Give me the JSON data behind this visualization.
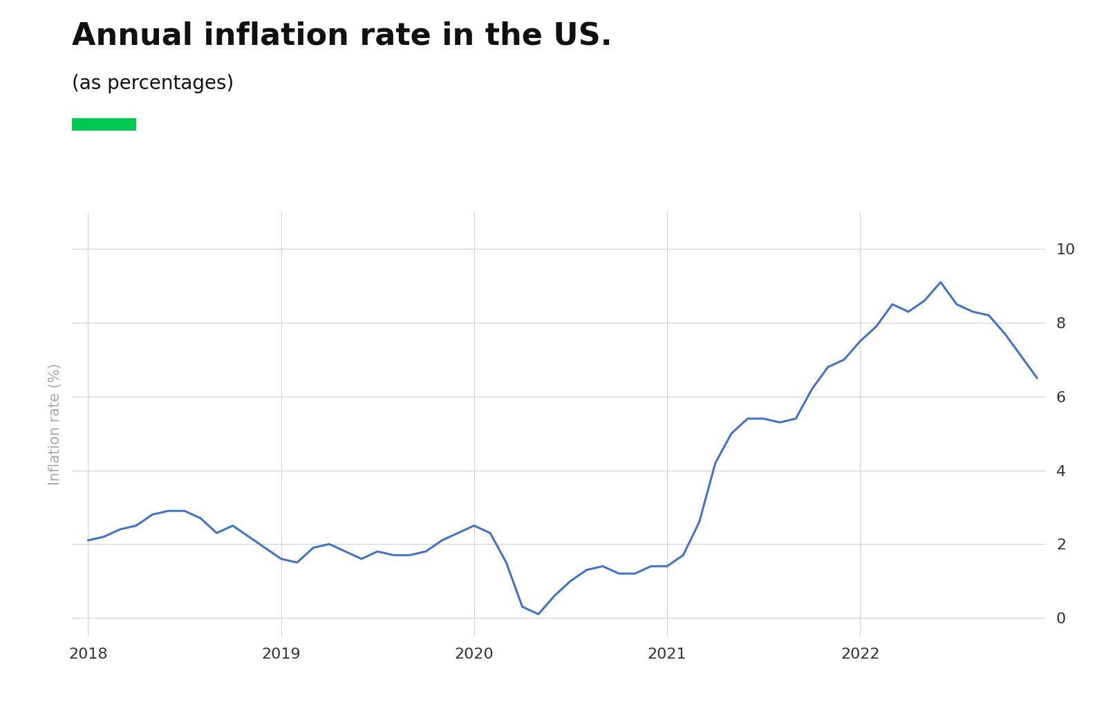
{
  "title": "Annual inflation rate in the US.",
  "subtitle": "(as percentages)",
  "ylabel": "Inflation rate (%)",
  "line_color": "#4472C4",
  "legend_color": "#00C853",
  "background_color": "#ffffff",
  "grid_color": "#d0d0d0",
  "tick_label_color": "#333333",
  "ylabel_color": "#aaaaaa",
  "ylim": [
    -0.5,
    11.0
  ],
  "yticks": [
    0,
    2,
    4,
    6,
    8,
    10
  ],
  "values": [
    2.1,
    2.2,
    2.4,
    2.5,
    2.8,
    2.9,
    2.9,
    2.7,
    2.3,
    2.5,
    2.2,
    1.9,
    1.6,
    1.5,
    1.9,
    2.0,
    1.8,
    1.6,
    1.8,
    1.7,
    1.7,
    1.8,
    2.1,
    2.3,
    2.5,
    2.3,
    1.5,
    0.3,
    0.1,
    0.6,
    1.0,
    1.3,
    1.4,
    1.2,
    1.2,
    1.4,
    1.4,
    1.7,
    2.6,
    4.2,
    5.0,
    5.4,
    5.4,
    5.3,
    5.4,
    6.2,
    6.8,
    7.0,
    7.5,
    7.9,
    8.5,
    8.3,
    8.6,
    9.1,
    8.5,
    8.3,
    8.2,
    7.7,
    7.1,
    6.5
  ],
  "xtick_positions": [
    0,
    12,
    24,
    36,
    48
  ],
  "xtick_labels": [
    "2018",
    "2019",
    "2020",
    "2021",
    "2022"
  ],
  "title_fontsize": 32,
  "subtitle_fontsize": 20,
  "tick_fontsize": 16,
  "ylabel_fontsize": 15
}
